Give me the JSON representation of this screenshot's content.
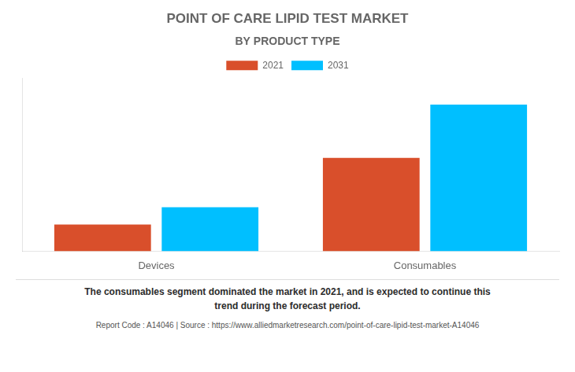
{
  "chart_data": {
    "type": "bar",
    "title": "POINT OF CARE LIPID TEST MARKET",
    "subtitle": "BY PRODUCT TYPE",
    "categories": [
      "Devices",
      "Consumables"
    ],
    "series": [
      {
        "name": "2021",
        "color": "#d94f2b",
        "values": [
          1.0,
          3.5
        ]
      },
      {
        "name": "2031",
        "color": "#00bfff",
        "values": [
          1.65,
          5.5
        ]
      }
    ],
    "ylim": [
      0,
      6.5
    ],
    "grid": false,
    "legend": "top",
    "tick_labels": "x",
    "annotations": [
      "The consumables segment dominated the market in 2021, and is expected to continue this\ntrend during the forecast period.",
      "Report Code : A14046  |  Source : https://www.alliedmarketresearch.com/point-of-care-lipid-test-market-A14046"
    ]
  }
}
